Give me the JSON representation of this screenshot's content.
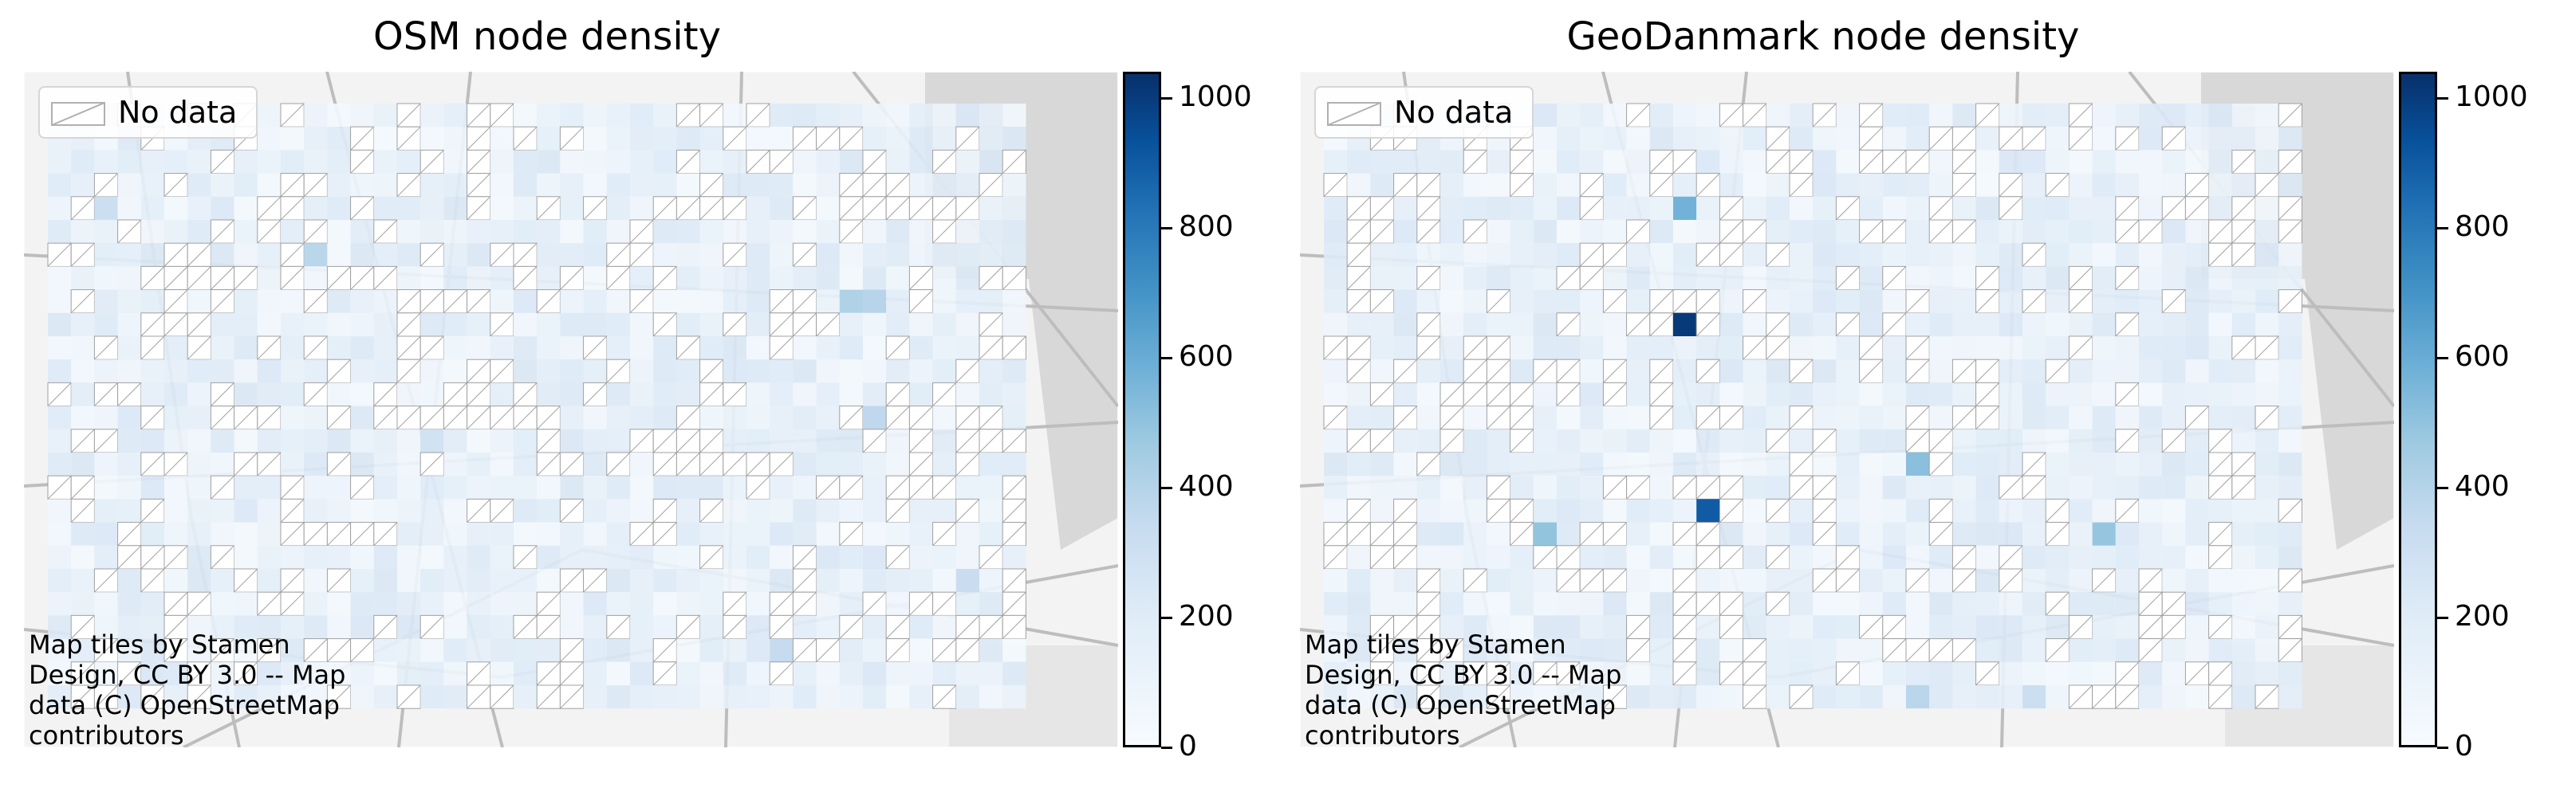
{
  "panels": [
    {
      "title": "OSM node density",
      "legend": {
        "label": "No data"
      },
      "attribution": [
        "Map tiles by Stamen",
        "Design, CC BY 3.0 -- Map",
        "data (C) OpenStreetMap",
        "contributors"
      ],
      "colorbar": {
        "ticks": [
          "0",
          "200",
          "400",
          "600",
          "800",
          "1000"
        ],
        "min": 0,
        "max": 1040
      },
      "hotspots": [
        {
          "col": 2,
          "row": 4,
          "value": 230
        },
        {
          "col": 11,
          "row": 6,
          "value": 300
        },
        {
          "col": 34,
          "row": 8,
          "value": 330
        },
        {
          "col": 35,
          "row": 8,
          "value": 310
        },
        {
          "col": 35,
          "row": 13,
          "value": 280
        },
        {
          "col": 16,
          "row": 14,
          "value": 200
        },
        {
          "col": 31,
          "row": 23,
          "value": 260
        },
        {
          "col": 39,
          "row": 20,
          "value": 240
        }
      ]
    },
    {
      "title": "GeoDanmark node density",
      "legend": {
        "label": "No data"
      },
      "attribution": [
        "Map tiles by Stamen",
        "Design, CC BY 3.0 -- Map",
        "data (C) OpenStreetMap",
        "contributors"
      ],
      "colorbar": {
        "ticks": [
          "0",
          "200",
          "400",
          "600",
          "800",
          "1000"
        ],
        "min": 0,
        "max": 1040
      },
      "hotspots": [
        {
          "col": 15,
          "row": 4,
          "value": 500
        },
        {
          "col": 15,
          "row": 9,
          "value": 1000
        },
        {
          "col": 16,
          "row": 17,
          "value": 870
        },
        {
          "col": 25,
          "row": 15,
          "value": 440
        },
        {
          "col": 9,
          "row": 18,
          "value": 420
        },
        {
          "col": 33,
          "row": 18,
          "value": 410
        },
        {
          "col": 25,
          "row": 25,
          "value": 300
        },
        {
          "col": 30,
          "row": 25,
          "value": 230
        }
      ]
    }
  ],
  "colors": {
    "ramp": [
      "#f7fbff",
      "#deebf7",
      "#c6dbef",
      "#9ecae1",
      "#6baed6",
      "#4292c6",
      "#2171b5",
      "#08519c",
      "#08306b"
    ],
    "nodata_edge": "#a0a0a0",
    "basemap_water": "#d8d8d8",
    "basemap_road": "#bdbdbd"
  }
}
